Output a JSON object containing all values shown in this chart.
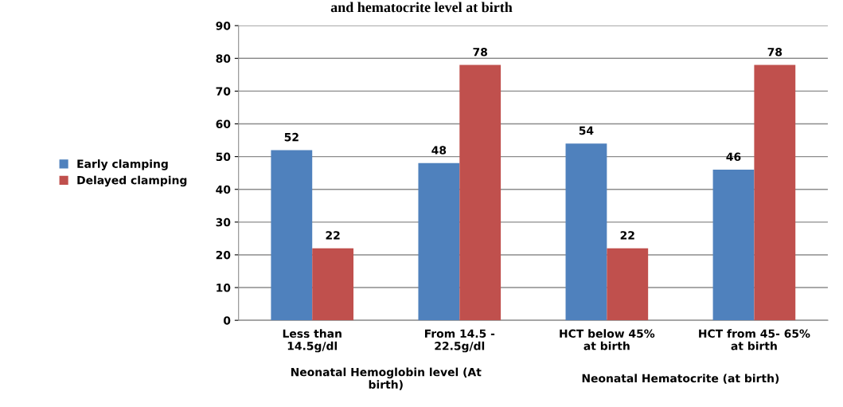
{
  "chart_data": {
    "type": "bar",
    "title": "and hematocrite level at birth",
    "categories": [
      "Less than\n14.5g/dl",
      "From 14.5 -\n22.5g/dl",
      "HCT below 45%\nat birth",
      "HCT from 45- 65%\nat birth"
    ],
    "series": [
      {
        "name": "Early clamping",
        "color": "#4f81bd",
        "values": [
          52,
          48,
          54,
          46
        ]
      },
      {
        "name": "Delayed clamping",
        "color": "#c0504d",
        "values": [
          22,
          78,
          22,
          78
        ]
      }
    ],
    "ylim": [
      0,
      90
    ],
    "yticks": [
      0,
      10,
      20,
      30,
      40,
      50,
      60,
      70,
      80,
      90
    ],
    "grid": "y",
    "legend": "left",
    "data_labels": true,
    "annotations": [
      "Neonatal Hemoglobin level (At\nbirth)",
      "Neonatal Hematocrite (at birth)"
    ]
  }
}
